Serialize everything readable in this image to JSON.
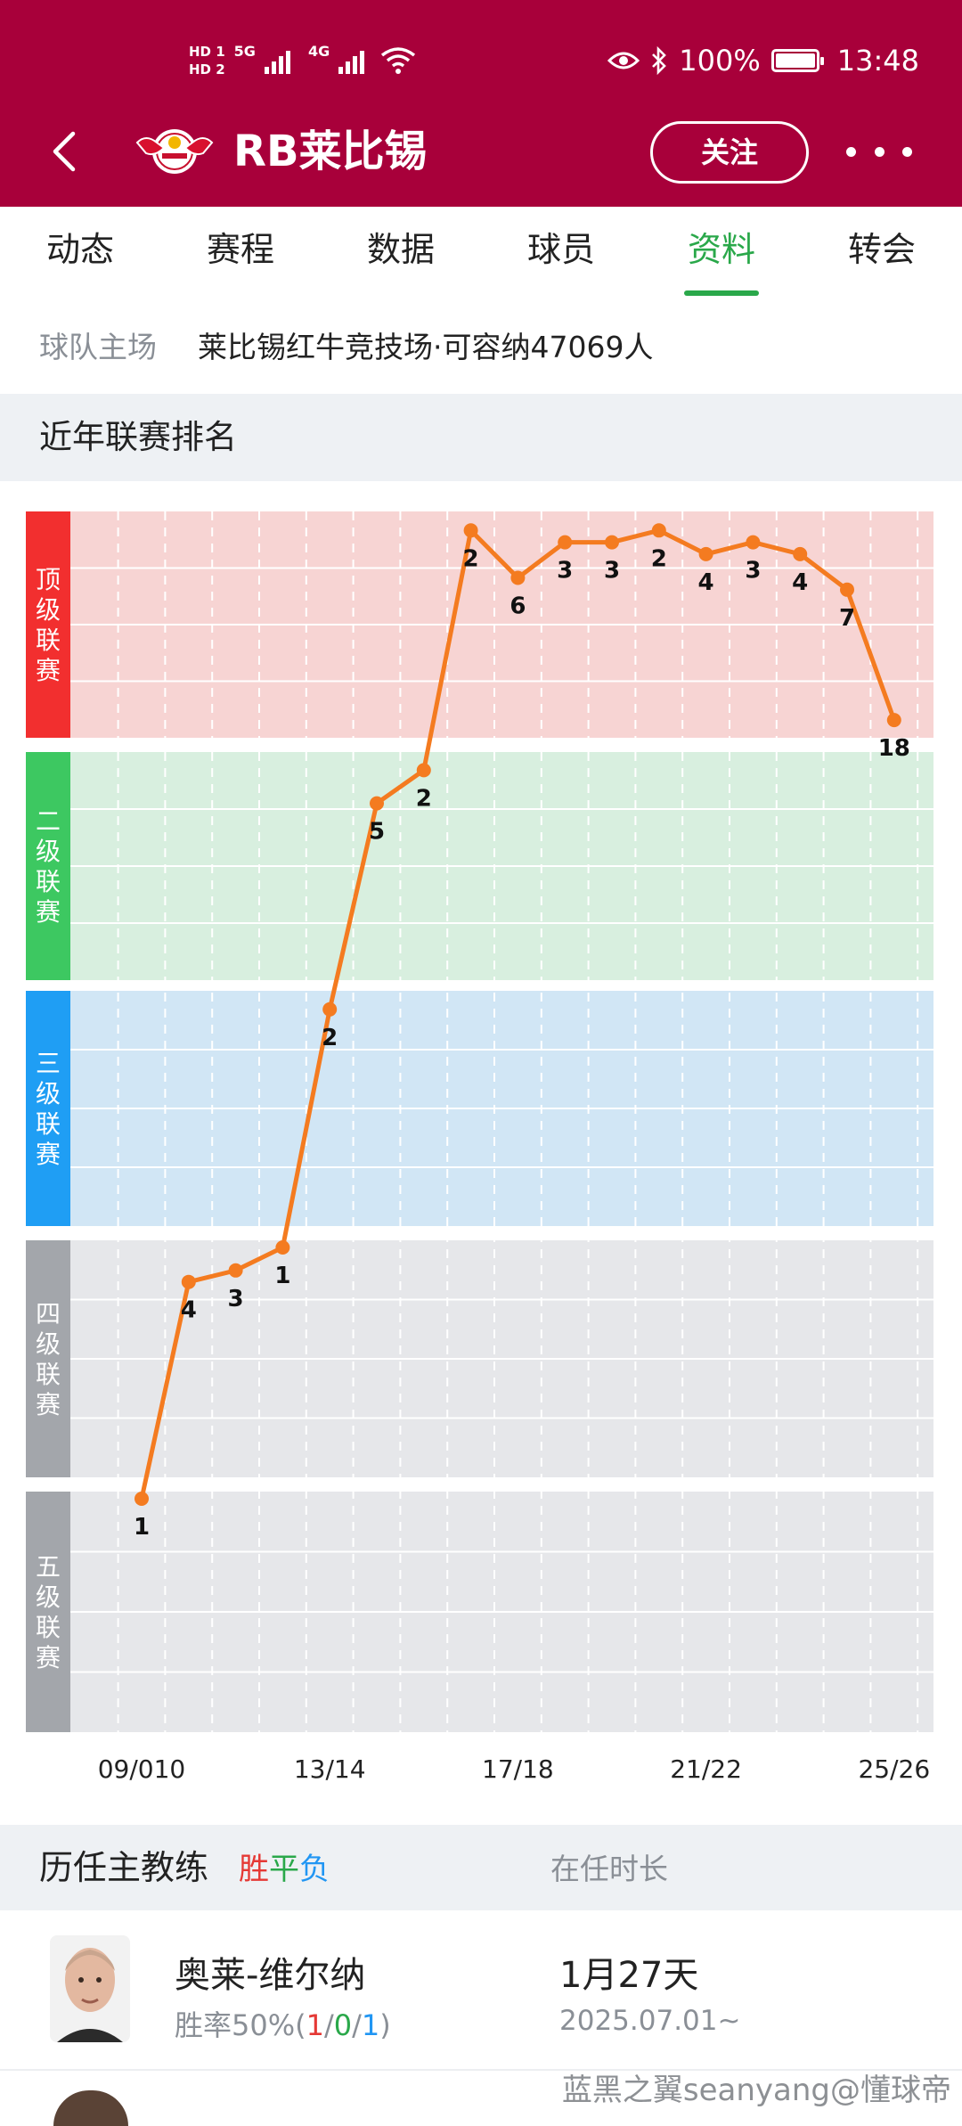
{
  "status_bar": {
    "hd1": "HD 1",
    "hd2": "HD 2",
    "net1": "5G",
    "net2": "4G",
    "battery": "100%",
    "time": "13:48"
  },
  "nav": {
    "team_name": "RB莱比锡",
    "follow_label": "关注",
    "icons": [
      "back-icon",
      "team-logo",
      "more-icon"
    ]
  },
  "tabs": [
    {
      "label": "动态"
    },
    {
      "label": "赛程"
    },
    {
      "label": "数据"
    },
    {
      "label": "球员"
    },
    {
      "label": "资料"
    },
    {
      "label": "转会"
    }
  ],
  "active_tab_color": "#2aa84a",
  "stadium": {
    "label": "球队主场",
    "value": "莱比锡红牛竞技场·可容纳47069人"
  },
  "ranking_section": {
    "title": "近年联赛排名"
  },
  "chart_data": {
    "type": "line",
    "title": "",
    "tiers": [
      {
        "label": "顶级联赛",
        "color": "#f22f2f",
        "bg": "#f7d4d3"
      },
      {
        "label": "二级联赛",
        "color": "#3dc861",
        "bg": "#d8efdf"
      },
      {
        "label": "三级联赛",
        "color": "#1f9ef4",
        "bg": "#d1e6f5"
      },
      {
        "label": "四级联赛",
        "color": "#a3a6ab",
        "bg": "#e6e7ea"
      },
      {
        "label": "五级联赛",
        "color": "#a3a6ab",
        "bg": "#e6e7ea"
      }
    ],
    "x_ticks": [
      {
        "season_index": 0,
        "label": "09/010"
      },
      {
        "season_index": 4,
        "label": "13/14"
      },
      {
        "season_index": 8,
        "label": "17/18"
      },
      {
        "season_index": 12,
        "label": "21/22"
      },
      {
        "season_index": 16,
        "label": "25/26"
      }
    ],
    "points": [
      {
        "season_index": 0,
        "tier": 4,
        "rank": 1
      },
      {
        "season_index": 1,
        "tier": 3,
        "rank": 4
      },
      {
        "season_index": 2,
        "tier": 3,
        "rank": 3
      },
      {
        "season_index": 3,
        "tier": 3,
        "rank": 1
      },
      {
        "season_index": 4,
        "tier": 2,
        "rank": 2
      },
      {
        "season_index": 5,
        "tier": 1,
        "rank": 5
      },
      {
        "season_index": 6,
        "tier": 1,
        "rank": 2
      },
      {
        "season_index": 7,
        "tier": 0,
        "rank": 2
      },
      {
        "season_index": 8,
        "tier": 0,
        "rank": 6
      },
      {
        "season_index": 9,
        "tier": 0,
        "rank": 3
      },
      {
        "season_index": 10,
        "tier": 0,
        "rank": 3
      },
      {
        "season_index": 11,
        "tier": 0,
        "rank": 2
      },
      {
        "season_index": 12,
        "tier": 0,
        "rank": 4
      },
      {
        "season_index": 13,
        "tier": 0,
        "rank": 3
      },
      {
        "season_index": 14,
        "tier": 0,
        "rank": 4
      },
      {
        "season_index": 15,
        "tier": 0,
        "rank": 7
      },
      {
        "season_index": 16,
        "tier": 0,
        "rank": 18
      }
    ],
    "line_color": "#f47b20",
    "grid": true
  },
  "coaches_section": {
    "title": "历任主教练",
    "legend_w": "胜",
    "legend_d": "平",
    "legend_l": "负",
    "tenure_header": "在任时长"
  },
  "coaches": [
    {
      "name": "奥莱-维尔纳",
      "rate_prefix": "胜率50%(",
      "wins": "1",
      "sep1": "/",
      "draws": "0",
      "sep2": "/",
      "losses": "1",
      "rate_suffix": ")",
      "tenure": "1月27天",
      "start_date": "2025.07.01~"
    }
  ],
  "watermark": "蓝黑之翼seanyang@懂球帝"
}
